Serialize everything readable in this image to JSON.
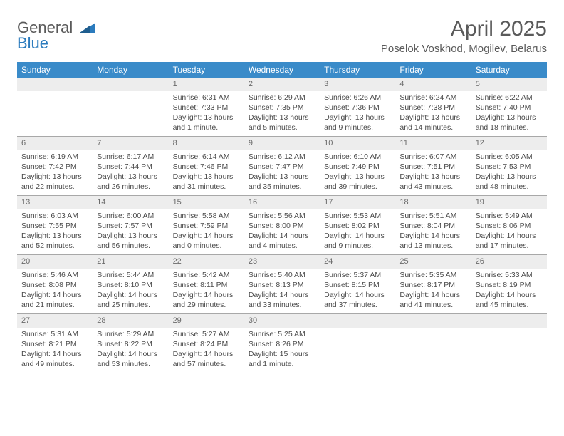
{
  "brand": {
    "word1": "General",
    "word2": "Blue"
  },
  "colors": {
    "header_bg": "#3a8bc9",
    "daynum_bg": "#ededed",
    "text": "#4a4a4a",
    "title": "#5a5a5a",
    "brand_blue": "#2b7bbd",
    "row_border": "#a8a8a8"
  },
  "title": "April 2025",
  "location": "Poselok Voskhod, Mogilev, Belarus",
  "weekdays": [
    "Sunday",
    "Monday",
    "Tuesday",
    "Wednesday",
    "Thursday",
    "Friday",
    "Saturday"
  ],
  "weeks": [
    [
      {
        "empty": true
      },
      {
        "empty": true
      },
      {
        "num": "1",
        "sunrise": "Sunrise: 6:31 AM",
        "sunset": "Sunset: 7:33 PM",
        "daylight": "Daylight: 13 hours and 1 minute."
      },
      {
        "num": "2",
        "sunrise": "Sunrise: 6:29 AM",
        "sunset": "Sunset: 7:35 PM",
        "daylight": "Daylight: 13 hours and 5 minutes."
      },
      {
        "num": "3",
        "sunrise": "Sunrise: 6:26 AM",
        "sunset": "Sunset: 7:36 PM",
        "daylight": "Daylight: 13 hours and 9 minutes."
      },
      {
        "num": "4",
        "sunrise": "Sunrise: 6:24 AM",
        "sunset": "Sunset: 7:38 PM",
        "daylight": "Daylight: 13 hours and 14 minutes."
      },
      {
        "num": "5",
        "sunrise": "Sunrise: 6:22 AM",
        "sunset": "Sunset: 7:40 PM",
        "daylight": "Daylight: 13 hours and 18 minutes."
      }
    ],
    [
      {
        "num": "6",
        "sunrise": "Sunrise: 6:19 AM",
        "sunset": "Sunset: 7:42 PM",
        "daylight": "Daylight: 13 hours and 22 minutes."
      },
      {
        "num": "7",
        "sunrise": "Sunrise: 6:17 AM",
        "sunset": "Sunset: 7:44 PM",
        "daylight": "Daylight: 13 hours and 26 minutes."
      },
      {
        "num": "8",
        "sunrise": "Sunrise: 6:14 AM",
        "sunset": "Sunset: 7:46 PM",
        "daylight": "Daylight: 13 hours and 31 minutes."
      },
      {
        "num": "9",
        "sunrise": "Sunrise: 6:12 AM",
        "sunset": "Sunset: 7:47 PM",
        "daylight": "Daylight: 13 hours and 35 minutes."
      },
      {
        "num": "10",
        "sunrise": "Sunrise: 6:10 AM",
        "sunset": "Sunset: 7:49 PM",
        "daylight": "Daylight: 13 hours and 39 minutes."
      },
      {
        "num": "11",
        "sunrise": "Sunrise: 6:07 AM",
        "sunset": "Sunset: 7:51 PM",
        "daylight": "Daylight: 13 hours and 43 minutes."
      },
      {
        "num": "12",
        "sunrise": "Sunrise: 6:05 AM",
        "sunset": "Sunset: 7:53 PM",
        "daylight": "Daylight: 13 hours and 48 minutes."
      }
    ],
    [
      {
        "num": "13",
        "sunrise": "Sunrise: 6:03 AM",
        "sunset": "Sunset: 7:55 PM",
        "daylight": "Daylight: 13 hours and 52 minutes."
      },
      {
        "num": "14",
        "sunrise": "Sunrise: 6:00 AM",
        "sunset": "Sunset: 7:57 PM",
        "daylight": "Daylight: 13 hours and 56 minutes."
      },
      {
        "num": "15",
        "sunrise": "Sunrise: 5:58 AM",
        "sunset": "Sunset: 7:59 PM",
        "daylight": "Daylight: 14 hours and 0 minutes."
      },
      {
        "num": "16",
        "sunrise": "Sunrise: 5:56 AM",
        "sunset": "Sunset: 8:00 PM",
        "daylight": "Daylight: 14 hours and 4 minutes."
      },
      {
        "num": "17",
        "sunrise": "Sunrise: 5:53 AM",
        "sunset": "Sunset: 8:02 PM",
        "daylight": "Daylight: 14 hours and 9 minutes."
      },
      {
        "num": "18",
        "sunrise": "Sunrise: 5:51 AM",
        "sunset": "Sunset: 8:04 PM",
        "daylight": "Daylight: 14 hours and 13 minutes."
      },
      {
        "num": "19",
        "sunrise": "Sunrise: 5:49 AM",
        "sunset": "Sunset: 8:06 PM",
        "daylight": "Daylight: 14 hours and 17 minutes."
      }
    ],
    [
      {
        "num": "20",
        "sunrise": "Sunrise: 5:46 AM",
        "sunset": "Sunset: 8:08 PM",
        "daylight": "Daylight: 14 hours and 21 minutes."
      },
      {
        "num": "21",
        "sunrise": "Sunrise: 5:44 AM",
        "sunset": "Sunset: 8:10 PM",
        "daylight": "Daylight: 14 hours and 25 minutes."
      },
      {
        "num": "22",
        "sunrise": "Sunrise: 5:42 AM",
        "sunset": "Sunset: 8:11 PM",
        "daylight": "Daylight: 14 hours and 29 minutes."
      },
      {
        "num": "23",
        "sunrise": "Sunrise: 5:40 AM",
        "sunset": "Sunset: 8:13 PM",
        "daylight": "Daylight: 14 hours and 33 minutes."
      },
      {
        "num": "24",
        "sunrise": "Sunrise: 5:37 AM",
        "sunset": "Sunset: 8:15 PM",
        "daylight": "Daylight: 14 hours and 37 minutes."
      },
      {
        "num": "25",
        "sunrise": "Sunrise: 5:35 AM",
        "sunset": "Sunset: 8:17 PM",
        "daylight": "Daylight: 14 hours and 41 minutes."
      },
      {
        "num": "26",
        "sunrise": "Sunrise: 5:33 AM",
        "sunset": "Sunset: 8:19 PM",
        "daylight": "Daylight: 14 hours and 45 minutes."
      }
    ],
    [
      {
        "num": "27",
        "sunrise": "Sunrise: 5:31 AM",
        "sunset": "Sunset: 8:21 PM",
        "daylight": "Daylight: 14 hours and 49 minutes."
      },
      {
        "num": "28",
        "sunrise": "Sunrise: 5:29 AM",
        "sunset": "Sunset: 8:22 PM",
        "daylight": "Daylight: 14 hours and 53 minutes."
      },
      {
        "num": "29",
        "sunrise": "Sunrise: 5:27 AM",
        "sunset": "Sunset: 8:24 PM",
        "daylight": "Daylight: 14 hours and 57 minutes."
      },
      {
        "num": "30",
        "sunrise": "Sunrise: 5:25 AM",
        "sunset": "Sunset: 8:26 PM",
        "daylight": "Daylight: 15 hours and 1 minute."
      },
      {
        "empty": true
      },
      {
        "empty": true
      },
      {
        "empty": true
      }
    ]
  ]
}
